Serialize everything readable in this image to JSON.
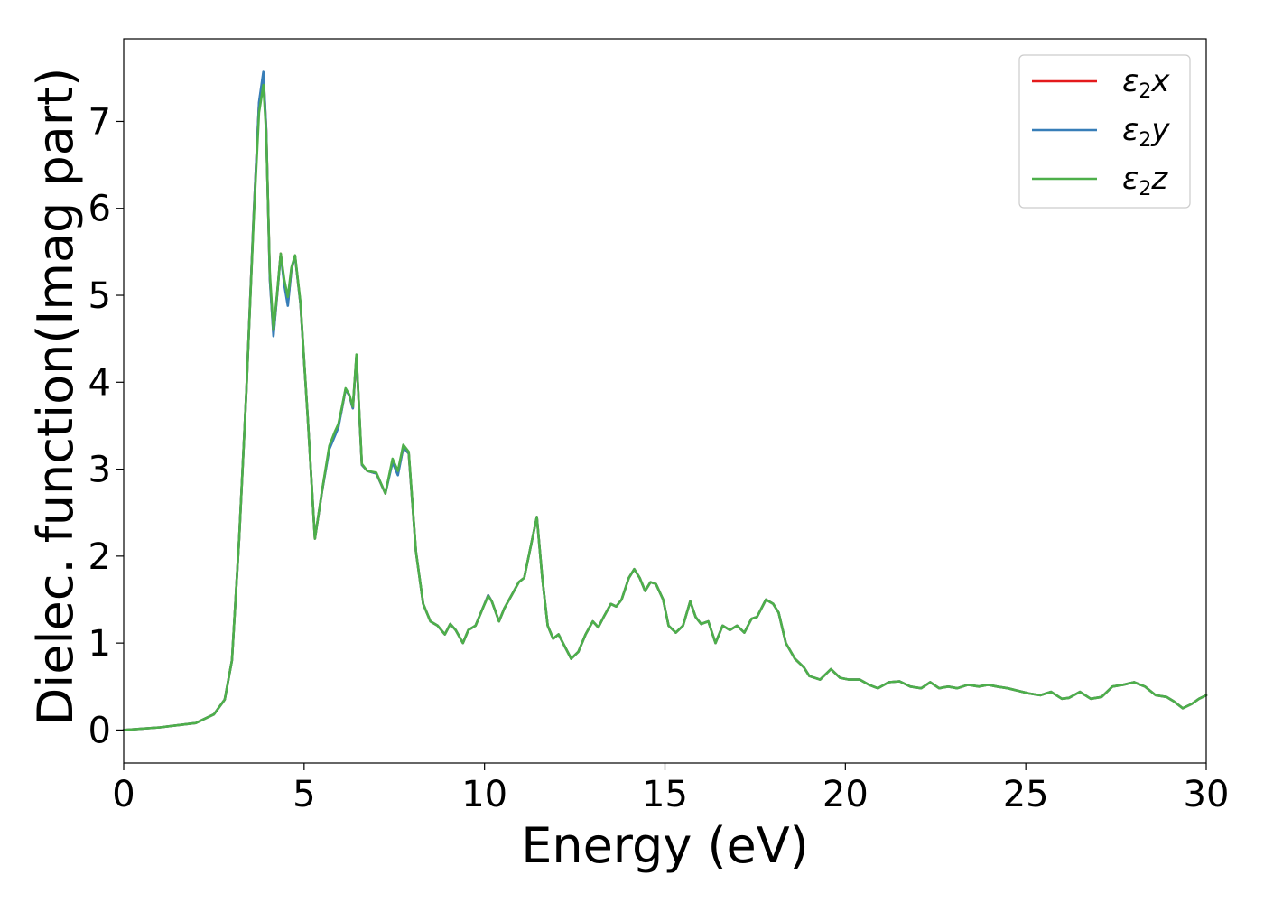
{
  "chart_data": {
    "type": "line",
    "xlabel": "Energy (eV)",
    "ylabel": "Dielec. function(Imag part)",
    "xlim": [
      0,
      30
    ],
    "ylim": [
      -0.38,
      7.95
    ],
    "xticks": [
      0,
      5,
      10,
      15,
      20,
      25,
      30
    ],
    "xtick_labels": [
      "0",
      "5",
      "10",
      "15",
      "20",
      "25",
      "30"
    ],
    "yticks": [
      0,
      1,
      2,
      3,
      4,
      5,
      6,
      7
    ],
    "ytick_labels": [
      "0",
      "1",
      "2",
      "3",
      "4",
      "5",
      "6",
      "7"
    ],
    "grid": false,
    "legend_position": "top-right",
    "series": [
      {
        "name": "ε2x",
        "legend_base": "ε",
        "legend_sub": "2",
        "legend_var": "x",
        "color": "#e41a1c",
        "x": [
          0.0,
          1.0,
          2.0,
          2.5,
          2.8,
          3.0,
          3.2,
          3.4,
          3.6,
          3.75,
          3.87,
          3.95,
          4.05,
          4.15,
          4.25,
          4.35,
          4.45,
          4.55,
          4.65,
          4.75,
          4.9,
          5.1,
          5.3,
          5.5,
          5.7,
          5.85,
          5.95,
          6.05,
          6.15,
          6.25,
          6.35,
          6.45,
          6.6,
          6.75,
          7.0,
          7.25,
          7.45,
          7.6,
          7.75,
          7.9,
          8.1,
          8.3,
          8.5,
          8.7,
          8.9,
          9.05,
          9.2,
          9.4,
          9.55,
          9.75,
          9.95,
          10.1,
          10.2,
          10.4,
          10.55,
          10.75,
          10.95,
          11.1,
          11.25,
          11.45,
          11.6,
          11.75,
          11.9,
          12.05,
          12.2,
          12.4,
          12.6,
          12.8,
          13.0,
          13.15,
          13.3,
          13.5,
          13.65,
          13.8,
          14.0,
          14.15,
          14.3,
          14.45,
          14.6,
          14.75,
          14.95,
          15.1,
          15.3,
          15.5,
          15.7,
          15.85,
          16.0,
          16.2,
          16.4,
          16.6,
          16.8,
          17.0,
          17.2,
          17.4,
          17.55,
          17.8,
          18.0,
          18.15,
          18.35,
          18.6,
          18.85,
          19.0,
          19.3,
          19.6,
          19.85,
          20.1,
          20.4,
          20.65,
          20.9,
          21.2,
          21.5,
          21.8,
          22.1,
          22.35,
          22.6,
          22.85,
          23.1,
          23.4,
          23.7,
          23.95,
          24.2,
          24.5,
          24.8,
          25.1,
          25.4,
          25.7,
          26.0,
          26.2,
          26.5,
          26.8,
          27.1,
          27.4,
          27.7,
          28.0,
          28.3,
          28.6,
          28.9,
          29.1,
          29.35,
          29.6,
          29.8,
          30.0
        ],
        "y": [
          0.0,
          0.03,
          0.08,
          0.18,
          0.35,
          0.8,
          2.2,
          3.9,
          5.9,
          7.2,
          7.55,
          6.9,
          5.2,
          4.55,
          5.0,
          5.48,
          5.15,
          4.9,
          5.3,
          5.45,
          4.9,
          3.6,
          2.2,
          2.75,
          3.25,
          3.4,
          3.5,
          3.7,
          3.92,
          3.85,
          3.7,
          4.3,
          3.05,
          2.98,
          2.95,
          2.72,
          3.1,
          2.95,
          3.25,
          3.18,
          2.05,
          1.45,
          1.25,
          1.2,
          1.1,
          1.22,
          1.15,
          1.0,
          1.15,
          1.2,
          1.4,
          1.55,
          1.48,
          1.25,
          1.4,
          1.55,
          1.7,
          1.75,
          2.05,
          2.45,
          1.75,
          1.2,
          1.05,
          1.1,
          0.98,
          0.82,
          0.9,
          1.1,
          1.25,
          1.18,
          1.3,
          1.45,
          1.42,
          1.5,
          1.75,
          1.85,
          1.75,
          1.6,
          1.7,
          1.68,
          1.5,
          1.2,
          1.12,
          1.2,
          1.48,
          1.3,
          1.22,
          1.25,
          1.0,
          1.2,
          1.15,
          1.2,
          1.12,
          1.28,
          1.3,
          1.5,
          1.45,
          1.35,
          1.0,
          0.82,
          0.72,
          0.62,
          0.58,
          0.7,
          0.6,
          0.58,
          0.58,
          0.52,
          0.48,
          0.55,
          0.56,
          0.5,
          0.48,
          0.55,
          0.48,
          0.5,
          0.48,
          0.52,
          0.5,
          0.52,
          0.5,
          0.48,
          0.45,
          0.42,
          0.4,
          0.44,
          0.36,
          0.37,
          0.44,
          0.36,
          0.38,
          0.5,
          0.52,
          0.55,
          0.5,
          0.4,
          0.38,
          0.33,
          0.25,
          0.3,
          0.36,
          0.4
        ]
      },
      {
        "name": "ε2y",
        "legend_base": "ε",
        "legend_sub": "2",
        "legend_var": "y",
        "color": "#377eb8",
        "x": [
          0.0,
          1.0,
          2.0,
          2.5,
          2.8,
          3.0,
          3.2,
          3.4,
          3.6,
          3.75,
          3.87,
          3.95,
          4.05,
          4.15,
          4.25,
          4.35,
          4.45,
          4.55,
          4.65,
          4.75,
          4.9,
          5.1,
          5.3,
          5.5,
          5.7,
          5.85,
          5.95,
          6.05,
          6.15,
          6.25,
          6.35,
          6.45,
          6.6,
          6.75,
          7.0,
          7.25,
          7.45,
          7.6,
          7.75,
          7.9,
          8.1,
          8.3,
          8.5,
          8.7,
          8.9,
          9.05,
          9.2,
          9.4,
          9.55,
          9.75,
          9.95,
          10.1,
          10.2,
          10.4,
          10.55,
          10.75,
          10.95,
          11.1,
          11.25,
          11.45,
          11.6,
          11.75,
          11.9,
          12.05,
          12.2,
          12.4,
          12.6,
          12.8,
          13.0,
          13.15,
          13.3,
          13.5,
          13.65,
          13.8,
          14.0,
          14.15,
          14.3,
          14.45,
          14.6,
          14.75,
          14.95,
          15.1,
          15.3,
          15.5,
          15.7,
          15.85,
          16.0,
          16.2,
          16.4,
          16.6,
          16.8,
          17.0,
          17.2,
          17.4,
          17.55,
          17.8,
          18.0,
          18.15,
          18.35,
          18.6,
          18.85,
          19.0,
          19.3,
          19.6,
          19.85,
          20.1,
          20.4,
          20.65,
          20.9,
          21.2,
          21.5,
          21.8,
          22.1,
          22.35,
          22.6,
          22.85,
          23.1,
          23.4,
          23.7,
          23.95,
          24.2,
          24.5,
          24.8,
          25.1,
          25.4,
          25.7,
          26.0,
          26.2,
          26.5,
          26.8,
          27.1,
          27.4,
          27.7,
          28.0,
          28.3,
          28.6,
          28.9,
          29.1,
          29.35,
          29.6,
          29.8,
          30.0
        ],
        "y": [
          0.0,
          0.03,
          0.08,
          0.18,
          0.35,
          0.8,
          2.2,
          3.9,
          5.9,
          7.22,
          7.57,
          6.9,
          5.18,
          4.53,
          5.0,
          5.47,
          5.12,
          4.88,
          5.3,
          5.45,
          4.9,
          3.6,
          2.2,
          2.75,
          3.23,
          3.38,
          3.48,
          3.7,
          3.92,
          3.85,
          3.7,
          4.3,
          3.05,
          2.98,
          2.95,
          2.72,
          3.08,
          2.93,
          3.25,
          3.18,
          2.05,
          1.45,
          1.25,
          1.2,
          1.1,
          1.22,
          1.15,
          1.0,
          1.15,
          1.2,
          1.4,
          1.55,
          1.48,
          1.25,
          1.4,
          1.55,
          1.7,
          1.75,
          2.05,
          2.45,
          1.75,
          1.2,
          1.05,
          1.1,
          0.98,
          0.82,
          0.9,
          1.1,
          1.25,
          1.18,
          1.3,
          1.45,
          1.42,
          1.5,
          1.75,
          1.85,
          1.75,
          1.6,
          1.7,
          1.68,
          1.5,
          1.2,
          1.12,
          1.2,
          1.48,
          1.3,
          1.22,
          1.25,
          1.0,
          1.2,
          1.15,
          1.2,
          1.12,
          1.28,
          1.3,
          1.5,
          1.45,
          1.35,
          1.0,
          0.82,
          0.72,
          0.62,
          0.58,
          0.7,
          0.6,
          0.58,
          0.58,
          0.52,
          0.48,
          0.55,
          0.56,
          0.5,
          0.48,
          0.55,
          0.48,
          0.5,
          0.48,
          0.52,
          0.5,
          0.52,
          0.5,
          0.48,
          0.45,
          0.42,
          0.4,
          0.44,
          0.36,
          0.37,
          0.44,
          0.36,
          0.38,
          0.5,
          0.52,
          0.55,
          0.5,
          0.4,
          0.38,
          0.33,
          0.25,
          0.3,
          0.36,
          0.4
        ]
      },
      {
        "name": "ε2z",
        "legend_base": "ε",
        "legend_sub": "2",
        "legend_var": "z",
        "color": "#4daf4a",
        "x": [
          0.0,
          1.0,
          2.0,
          2.5,
          2.8,
          3.0,
          3.2,
          3.4,
          3.6,
          3.75,
          3.87,
          3.95,
          4.05,
          4.15,
          4.25,
          4.35,
          4.45,
          4.55,
          4.65,
          4.75,
          4.9,
          5.1,
          5.3,
          5.5,
          5.7,
          5.85,
          5.95,
          6.05,
          6.15,
          6.25,
          6.35,
          6.45,
          6.6,
          6.75,
          7.0,
          7.25,
          7.45,
          7.6,
          7.75,
          7.9,
          8.1,
          8.3,
          8.5,
          8.7,
          8.9,
          9.05,
          9.2,
          9.4,
          9.55,
          9.75,
          9.95,
          10.1,
          10.2,
          10.4,
          10.55,
          10.75,
          10.95,
          11.1,
          11.25,
          11.45,
          11.6,
          11.75,
          11.9,
          12.05,
          12.2,
          12.4,
          12.6,
          12.8,
          13.0,
          13.15,
          13.3,
          13.5,
          13.65,
          13.8,
          14.0,
          14.15,
          14.3,
          14.45,
          14.6,
          14.75,
          14.95,
          15.1,
          15.3,
          15.5,
          15.7,
          15.85,
          16.0,
          16.2,
          16.4,
          16.6,
          16.8,
          17.0,
          17.2,
          17.4,
          17.55,
          17.8,
          18.0,
          18.15,
          18.35,
          18.6,
          18.85,
          19.0,
          19.3,
          19.6,
          19.85,
          20.1,
          20.4,
          20.65,
          20.9,
          21.2,
          21.5,
          21.8,
          22.1,
          22.35,
          22.6,
          22.85,
          23.1,
          23.4,
          23.7,
          23.95,
          24.2,
          24.5,
          24.8,
          25.1,
          25.4,
          25.7,
          26.0,
          26.2,
          26.5,
          26.8,
          27.1,
          27.4,
          27.7,
          28.0,
          28.3,
          28.6,
          28.9,
          29.1,
          29.35,
          29.6,
          29.8,
          30.0
        ],
        "y": [
          0.0,
          0.03,
          0.08,
          0.18,
          0.35,
          0.8,
          2.2,
          3.9,
          5.85,
          7.1,
          7.42,
          6.85,
          5.25,
          4.6,
          5.02,
          5.48,
          5.18,
          4.98,
          5.32,
          5.46,
          4.92,
          3.6,
          2.2,
          2.76,
          3.27,
          3.43,
          3.52,
          3.72,
          3.93,
          3.86,
          3.72,
          4.32,
          3.06,
          2.98,
          2.96,
          2.72,
          3.12,
          2.98,
          3.28,
          3.2,
          2.05,
          1.45,
          1.25,
          1.2,
          1.1,
          1.22,
          1.15,
          1.0,
          1.15,
          1.2,
          1.4,
          1.54,
          1.48,
          1.25,
          1.4,
          1.55,
          1.7,
          1.75,
          2.05,
          2.45,
          1.75,
          1.2,
          1.05,
          1.1,
          0.98,
          0.82,
          0.9,
          1.1,
          1.25,
          1.18,
          1.3,
          1.45,
          1.42,
          1.5,
          1.75,
          1.85,
          1.75,
          1.6,
          1.7,
          1.68,
          1.5,
          1.2,
          1.12,
          1.2,
          1.48,
          1.3,
          1.22,
          1.25,
          1.0,
          1.2,
          1.15,
          1.2,
          1.12,
          1.28,
          1.3,
          1.5,
          1.45,
          1.35,
          1.0,
          0.82,
          0.72,
          0.62,
          0.58,
          0.7,
          0.6,
          0.58,
          0.58,
          0.52,
          0.48,
          0.55,
          0.56,
          0.5,
          0.48,
          0.55,
          0.48,
          0.5,
          0.48,
          0.52,
          0.5,
          0.52,
          0.5,
          0.48,
          0.45,
          0.42,
          0.4,
          0.44,
          0.36,
          0.37,
          0.44,
          0.36,
          0.38,
          0.5,
          0.52,
          0.55,
          0.5,
          0.4,
          0.38,
          0.33,
          0.25,
          0.3,
          0.36,
          0.4
        ]
      }
    ]
  }
}
